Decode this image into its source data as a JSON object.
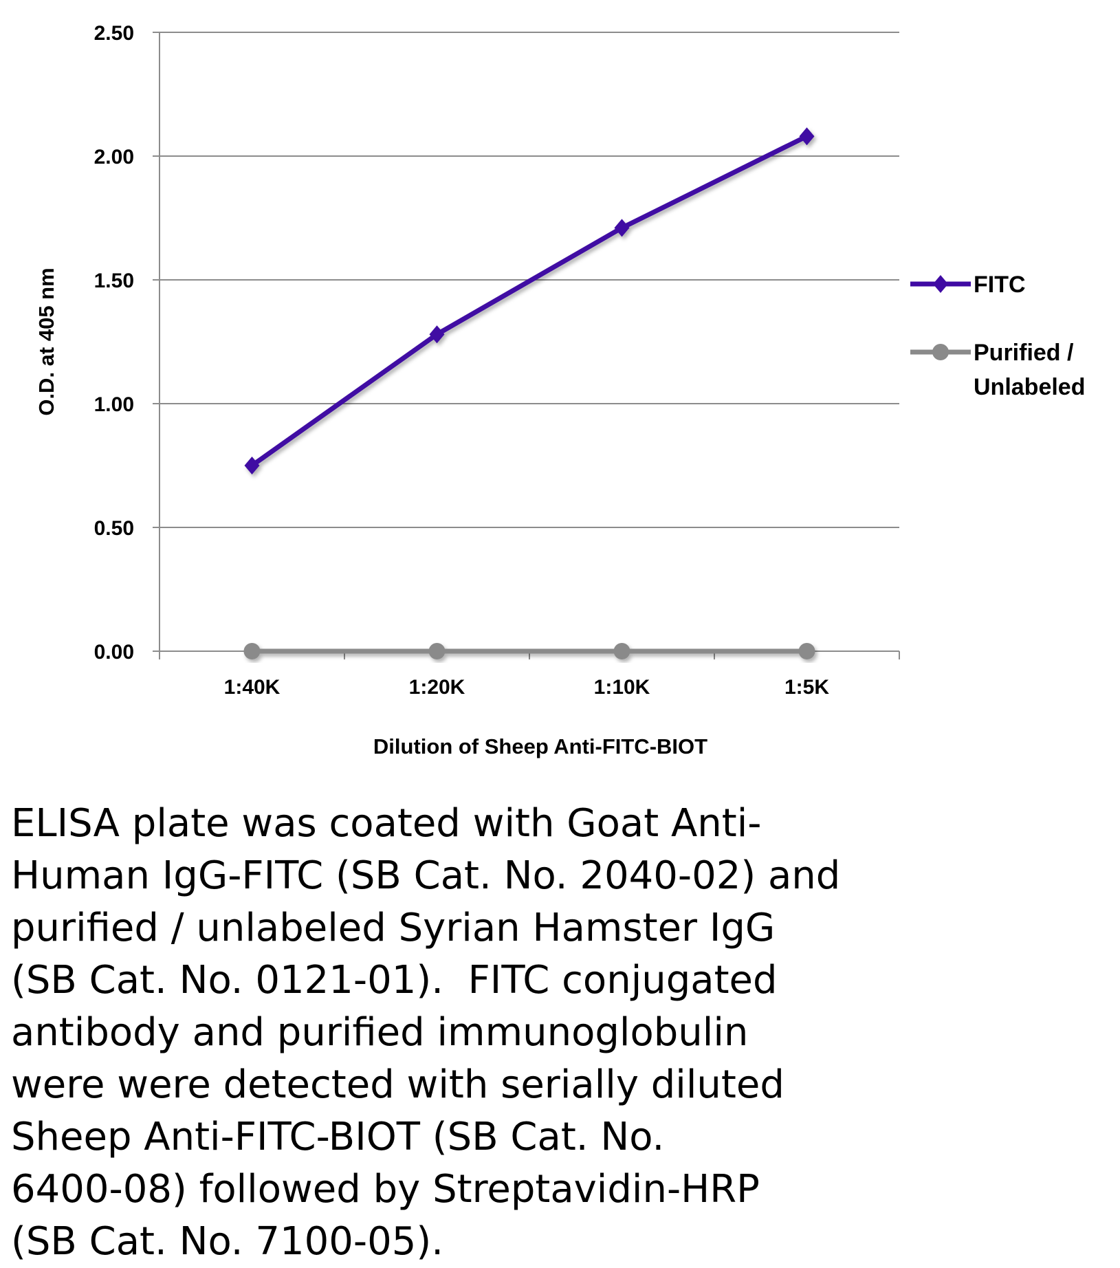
{
  "chart_data": {
    "type": "line",
    "categories": [
      "1:40K",
      "1:20K",
      "1:10K",
      "1:5K"
    ],
    "series": [
      {
        "name": "FITC",
        "values": [
          0.75,
          1.28,
          1.71,
          2.08
        ],
        "color": "#3f0aa3",
        "marker": "diamond"
      },
      {
        "name": "Purified / Unlabeled",
        "values": [
          0.0,
          0.0,
          0.0,
          0.0
        ],
        "color": "#8a8a8a",
        "marker": "circle"
      }
    ],
    "xlabel": "Dilution of Sheep Anti-FITC-BIOT",
    "ylabel": "O.D. at 405 nm",
    "ylim": [
      0,
      2.5
    ],
    "yticks": [
      "0.00",
      "0.50",
      "1.00",
      "1.50",
      "2.00",
      "2.50"
    ],
    "grid": true,
    "legend_position": "right",
    "legend_lines": [
      [
        "FITC"
      ],
      [
        "Purified /",
        "Unlabeled"
      ]
    ]
  },
  "caption": "ELISA plate was coated with Goat Anti-\nHuman IgG-FITC (SB Cat. No. 2040-02) and\npurified / unlabeled Syrian Hamster IgG\n(SB Cat. No. 0121-01).  FITC conjugated\nantibody and purified immunoglobulin\nwere were detected with serially diluted\nSheep Anti-FITC-BIOT (SB Cat. No.\n6400-08) followed by Streptavidin-HRP\n(SB Cat. No. 7100-05)."
}
